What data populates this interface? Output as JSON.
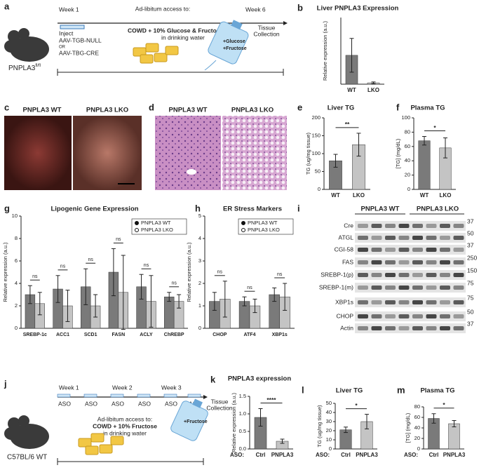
{
  "figure": {
    "a": {
      "panel": "a",
      "week1": "Week 1",
      "access": "Ad-libitum access to:",
      "week6": "Week 6",
      "inject": "Inject",
      "aav1": "AAV-TGB-NULL",
      "or": "OR",
      "aav2": "AAV-TBG-CRE",
      "diet": "COWD + 10% Glucose & Fructose",
      "water": "in drinking water",
      "tissue": [
        "Tissue",
        "Collection"
      ],
      "bottle": [
        "+Glucose",
        "+Fructose"
      ],
      "mouse": "PNPLA3",
      "mouse_sup": "fl/fl"
    },
    "c": {
      "panel": "c",
      "wt": "PNPLA3 WT",
      "lko": "PNPLA3 LKO"
    },
    "d": {
      "panel": "d",
      "wt": "PNPLA3 WT",
      "lko": "PNPLA3 LKO"
    },
    "i": {
      "panel": "i",
      "wt": "PNPLA3 WT",
      "lko": "PNPLA3 LKO",
      "rows": [
        {
          "name": "Cre",
          "mw": 37
        },
        {
          "name": "ATGL",
          "mw": 50
        },
        {
          "name": "CGI-58",
          "mw": 37
        },
        {
          "name": "FAS",
          "mw": 250
        },
        {
          "name": "SREBP-1(p)",
          "mw": 150
        },
        {
          "name": "SREBP-1(m)",
          "mw": 75
        },
        {
          "name": "XBP1s",
          "mw": 75
        },
        {
          "name": "CHOP",
          "mw": 50
        },
        {
          "name": "Actin",
          "mw": 37
        }
      ]
    },
    "j": {
      "panel": "j",
      "weeks": [
        "Week 1",
        "Week 2",
        "Week 3"
      ],
      "aso": "ASO",
      "tissue": [
        "Tissue",
        "Collection"
      ],
      "access": "Ad-libitum access to:",
      "diet": "COWD + 10% Fructose",
      "water": "in drinking water",
      "bottle": "+Fructose",
      "mouse": "C57BL/6 WT"
    }
  },
  "chart_data": [
    {
      "type": "bar",
      "panel": "b",
      "title": "Liver PNPLA3 Expression",
      "ylabel": "Relative expression (a.u.)",
      "categories": [
        "WT",
        "LKO"
      ],
      "values": [
        6.5,
        0.3
      ],
      "errors": [
        3.8,
        0.2
      ],
      "colors": [
        "#7a7a7a",
        "#c4c4c4"
      ],
      "ylim": [
        0,
        15
      ]
    },
    {
      "type": "bar",
      "panel": "e",
      "title": "Liver TG",
      "ylabel": "TG (ug/mg tissue)",
      "categories": [
        "WT",
        "LKO"
      ],
      "values": [
        80,
        125
      ],
      "errors": [
        18,
        32
      ],
      "colors": [
        "#7a7a7a",
        "#c4c4c4"
      ],
      "ylim": [
        0,
        200
      ],
      "yticks": [
        0,
        50,
        100,
        150,
        200
      ],
      "significance": "**"
    },
    {
      "type": "bar",
      "panel": "f",
      "title": "Plasma  TG",
      "ylabel": "[TG] (mg/dL)",
      "categories": [
        "WT",
        "LKO"
      ],
      "values": [
        68,
        58
      ],
      "errors": [
        6,
        14
      ],
      "colors": [
        "#7a7a7a",
        "#c4c4c4"
      ],
      "ylim": [
        0,
        100
      ],
      "yticks": [
        0,
        20,
        40,
        60,
        80,
        100
      ],
      "significance": "*"
    },
    {
      "type": "grouped_bar",
      "panel": "g",
      "title": "Lipogenic Gene Expression",
      "ylabel": "Relative expression (a.u.)",
      "categories": [
        "SREBP-1c",
        "ACC1",
        "SCD1",
        "FASN",
        "ACLY",
        "ChREBP"
      ],
      "series": [
        {
          "name": "PNPLA3 WT",
          "color": "#7a7a7a",
          "values": [
            3,
            3.5,
            3.7,
            5,
            3.7,
            2.8
          ],
          "errors": [
            0.8,
            1.2,
            1.6,
            2.1,
            1.1,
            0.4
          ]
        },
        {
          "name": "PNPLA3 LKO",
          "color": "#c4c4c4",
          "values": [
            2.2,
            2,
            2,
            3.2,
            2.4,
            2.4
          ],
          "errors": [
            1,
            1.4,
            1,
            3.3,
            2.3,
            0.6
          ]
        }
      ],
      "ylim": [
        0,
        10
      ],
      "yticks": [
        0,
        2,
        4,
        6,
        8,
        10
      ],
      "significance": [
        "ns",
        "ns",
        "ns",
        "ns",
        "ns",
        "ns"
      ]
    },
    {
      "type": "grouped_bar",
      "panel": "h",
      "title": "ER Stress Markers",
      "ylabel": "Relative expression (a.u.)",
      "categories": [
        "CHOP",
        "ATF4",
        "XBP1s"
      ],
      "series": [
        {
          "name": "PNPLA3 WT",
          "color": "#7a7a7a",
          "values": [
            1.2,
            1.2,
            1.5
          ],
          "errors": [
            0.4,
            0.2,
            0.3
          ]
        },
        {
          "name": "PNPLA3 LKO",
          "color": "#c4c4c4",
          "values": [
            1.3,
            1,
            1.4
          ],
          "errors": [
            0.8,
            0.3,
            0.6
          ]
        }
      ],
      "ylim": [
        0,
        5
      ],
      "yticks": [
        0,
        1,
        2,
        3,
        4,
        5
      ],
      "significance": [
        "ns",
        "ns",
        "ns"
      ]
    },
    {
      "type": "bar",
      "panel": "k",
      "title": "PNPLA3 expression",
      "ylabel": "Relative expression (a.u.)",
      "group_label": "ASO:",
      "categories": [
        "Ctrl",
        "PNPLA3"
      ],
      "values": [
        0.9,
        0.22
      ],
      "errors": [
        0.25,
        0.06
      ],
      "colors": [
        "#7a7a7a",
        "#c4c4c4"
      ],
      "ylim": [
        0,
        1.5
      ],
      "yticks": [
        {
          "value": 0,
          "label": "0.0"
        },
        {
          "value": 0.5,
          "label": "0.5"
        },
        {
          "value": 1,
          "label": "1.0"
        },
        {
          "value": 1.5,
          "label": "1.5"
        }
      ],
      "significance": "****"
    },
    {
      "type": "bar",
      "panel": "l",
      "title": "Liver TG",
      "ylabel": "TG (ug/mg tissue)",
      "group_label": "ASO:",
      "categories": [
        "Ctrl",
        "PNPLA3"
      ],
      "values": [
        21,
        30
      ],
      "errors": [
        3,
        8
      ],
      "colors": [
        "#7a7a7a",
        "#c4c4c4"
      ],
      "ylim": [
        0,
        50
      ],
      "yticks": [
        0,
        10,
        20,
        30,
        40,
        50
      ],
      "significance": "*"
    },
    {
      "type": "bar",
      "panel": "m",
      "title": "Plasma TG",
      "ylabel": "[TG] (mg/dL)",
      "group_label": "ASO:",
      "categories": [
        "Ctrl",
        "PNPLA3"
      ],
      "values": [
        58,
        48
      ],
      "errors": [
        9,
        6
      ],
      "colors": [
        "#7a7a7a",
        "#c4c4c4"
      ],
      "ylim": [
        0,
        80
      ],
      "yticks": [
        0,
        20,
        40,
        60,
        80
      ],
      "significance": "*"
    }
  ]
}
